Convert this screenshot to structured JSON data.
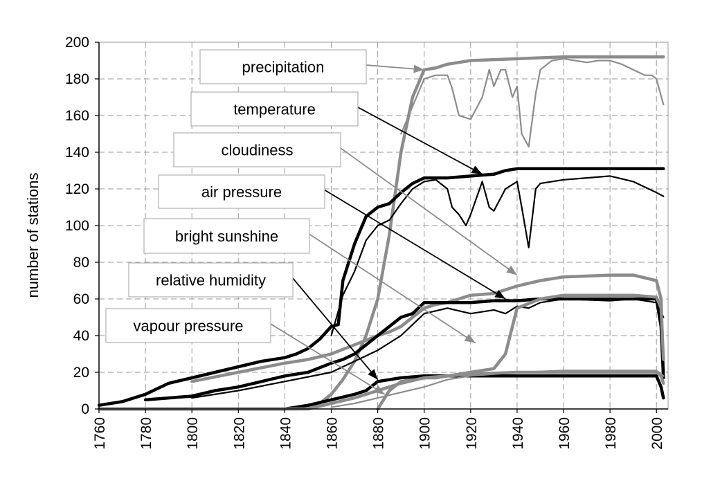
{
  "chart_data": {
    "type": "line",
    "title": "",
    "xlabel": "",
    "ylabel": "number of stations",
    "xlim": [
      1760,
      2005
    ],
    "ylim": [
      0,
      200
    ],
    "xticks": [
      "1760",
      "1780",
      "1800",
      "1820",
      "1840",
      "1860",
      "1880",
      "1900",
      "1920",
      "1940",
      "1960",
      "1980",
      "2000"
    ],
    "yticks": [
      "0",
      "20",
      "40",
      "60",
      "80",
      "100",
      "120",
      "140",
      "160",
      "180",
      "200"
    ],
    "grid": true,
    "colors": {
      "grey": "#8c8c8c",
      "black": "#000000"
    },
    "series": [
      {
        "name": "precipitation",
        "style": "grey-thick",
        "x": [
          1760,
          1790,
          1800,
          1810,
          1820,
          1830,
          1840,
          1845,
          1850,
          1855,
          1860,
          1865,
          1870,
          1875,
          1880,
          1885,
          1890,
          1895,
          1900,
          1905,
          1910,
          1920,
          1940,
          1960,
          1980,
          2000,
          2003
        ],
        "y": [
          0,
          0,
          0,
          0,
          0,
          0,
          0,
          0,
          1,
          3,
          8,
          16,
          26,
          40,
          60,
          95,
          140,
          170,
          185,
          186,
          188,
          190,
          191,
          192,
          192,
          192,
          192
        ]
      },
      {
        "name": "precipitation",
        "style": "grey-thin",
        "x": [
          1890,
          1900,
          1905,
          1910,
          1912,
          1915,
          1920,
          1925,
          1928,
          1930,
          1933,
          1935,
          1938,
          1940,
          1942,
          1945,
          1948,
          1950,
          1955,
          1960,
          1965,
          1970,
          1975,
          1980,
          1985,
          1990,
          1995,
          1998,
          2000,
          2003
        ],
        "y": [
          150,
          180,
          182,
          182,
          175,
          160,
          158,
          170,
          185,
          176,
          185,
          185,
          170,
          176,
          150,
          143,
          172,
          185,
          190,
          191,
          190,
          189,
          190,
          190,
          188,
          185,
          182,
          182,
          180,
          166
        ]
      },
      {
        "name": "temperature",
        "style": "black-thick",
        "x": [
          1760,
          1770,
          1780,
          1790,
          1800,
          1810,
          1820,
          1830,
          1840,
          1845,
          1850,
          1855,
          1860,
          1863,
          1865,
          1870,
          1875,
          1880,
          1885,
          1890,
          1895,
          1900,
          1910,
          1920,
          1930,
          1935,
          1940,
          1960,
          1980,
          2000,
          2003
        ],
        "y": [
          2,
          4,
          8,
          14,
          17,
          20,
          23,
          26,
          28,
          30,
          33,
          38,
          45,
          46,
          70,
          90,
          105,
          110,
          112,
          118,
          123,
          126,
          126,
          127,
          128,
          130,
          131,
          131,
          131,
          131,
          131
        ]
      },
      {
        "name": "temperature",
        "style": "black-thin",
        "x": [
          1860,
          1865,
          1870,
          1875,
          1880,
          1885,
          1890,
          1895,
          1900,
          1905,
          1910,
          1912,
          1915,
          1918,
          1920,
          1925,
          1928,
          1930,
          1935,
          1940,
          1942,
          1945,
          1948,
          1950,
          1955,
          1960,
          1970,
          1980,
          1990,
          1995,
          2000,
          2003
        ],
        "y": [
          40,
          62,
          75,
          92,
          100,
          103,
          112,
          120,
          124,
          125,
          120,
          110,
          106,
          100,
          106,
          124,
          110,
          108,
          120,
          124,
          110,
          88,
          120,
          123,
          124,
          125,
          126,
          127,
          124,
          121,
          118,
          116
        ]
      },
      {
        "name": "cloudiness",
        "style": "grey-thick",
        "x": [
          1800,
          1820,
          1840,
          1850,
          1860,
          1870,
          1880,
          1885,
          1890,
          1900,
          1905,
          1910,
          1920,
          1930,
          1940,
          1950,
          1960,
          1980,
          1990,
          2000,
          2002,
          2003
        ],
        "y": [
          15,
          20,
          25,
          27,
          30,
          35,
          40,
          42,
          45,
          55,
          57,
          58,
          62,
          63,
          67,
          70,
          72,
          73,
          73,
          70,
          60,
          20
        ]
      },
      {
        "name": "air pressure",
        "style": "black-thick",
        "x": [
          1780,
          1790,
          1800,
          1810,
          1820,
          1830,
          1840,
          1850,
          1860,
          1865,
          1870,
          1875,
          1880,
          1885,
          1890,
          1895,
          1900,
          1910,
          1920,
          1930,
          1940,
          1950,
          1960,
          1980,
          1990,
          2000,
          2002,
          2003
        ],
        "y": [
          5,
          6,
          7,
          10,
          12,
          15,
          18,
          20,
          25,
          27,
          30,
          35,
          40,
          45,
          50,
          52,
          58,
          58,
          58,
          59,
          59,
          60,
          60,
          60,
          60,
          60,
          45,
          17
        ]
      },
      {
        "name": "air pressure",
        "style": "black-thin",
        "x": [
          1800,
          1820,
          1840,
          1860,
          1870,
          1880,
          1890,
          1900,
          1910,
          1920,
          1930,
          1935,
          1940,
          1945,
          1950,
          1960,
          1980,
          1990,
          2000,
          2003
        ],
        "y": [
          6,
          10,
          15,
          20,
          26,
          32,
          40,
          52,
          55,
          52,
          54,
          52,
          56,
          55,
          58,
          60,
          59,
          60,
          58,
          50
        ]
      },
      {
        "name": "bright sunshine",
        "style": "grey-thick",
        "x": [
          1880,
          1885,
          1890,
          1895,
          1900,
          1905,
          1910,
          1920,
          1930,
          1935,
          1940,
          1950,
          1960,
          1980,
          1990,
          2000,
          2002,
          2003
        ],
        "y": [
          0,
          10,
          15,
          16,
          17,
          17,
          18,
          20,
          22,
          30,
          55,
          60,
          62,
          62,
          62,
          61,
          55,
          27
        ]
      },
      {
        "name": "relative humidity",
        "style": "black-thick",
        "x": [
          1760,
          1800,
          1820,
          1840,
          1850,
          1860,
          1870,
          1875,
          1880,
          1890,
          1900,
          1910,
          1920,
          1930,
          1940,
          1950,
          1960,
          1980,
          1990,
          2000,
          2002,
          2003
        ],
        "y": [
          0,
          0,
          0,
          0,
          2,
          5,
          8,
          10,
          15,
          17,
          18,
          18,
          18,
          18,
          18,
          18,
          18,
          18,
          18,
          18,
          12,
          6
        ]
      },
      {
        "name": "vapour pressure",
        "style": "grey-thick",
        "x": [
          1760,
          1840,
          1850,
          1860,
          1870,
          1880,
          1885,
          1890,
          1900,
          1920,
          1940,
          1960,
          1980,
          2000,
          2002,
          2003
        ],
        "y": [
          0,
          0,
          0,
          3,
          6,
          10,
          12,
          14,
          17,
          19,
          20,
          20,
          20,
          20,
          18,
          14
        ]
      },
      {
        "name": "vapour pressure",
        "style": "grey-thin",
        "x": [
          1860,
          1870,
          1880,
          1890,
          1900,
          1910,
          1920,
          1930,
          1940,
          1960,
          1980,
          2000,
          2003
        ],
        "y": [
          1,
          3,
          6,
          9,
          12,
          16,
          18,
          19,
          20,
          21,
          21,
          21,
          18
        ]
      }
    ],
    "callouts": [
      {
        "id": "precipitation",
        "text": "precipitation",
        "target": [
          1900,
          185
        ]
      },
      {
        "id": "temperature",
        "text": "temperature",
        "target": [
          1925,
          128
        ]
      },
      {
        "id": "cloudiness",
        "text": "cloudiness",
        "target": [
          1940,
          73
        ]
      },
      {
        "id": "air-pressure",
        "text": "air pressure",
        "target": [
          1935,
          60
        ]
      },
      {
        "id": "bright-sunshine",
        "text": "bright sunshine",
        "target": [
          1922,
          36
        ]
      },
      {
        "id": "relative-humidity",
        "text": "relative humidity",
        "target": [
          1880,
          16
        ]
      },
      {
        "id": "vapour-pressure",
        "text": "vapour pressure",
        "target": [
          1883,
          8
        ]
      }
    ]
  }
}
